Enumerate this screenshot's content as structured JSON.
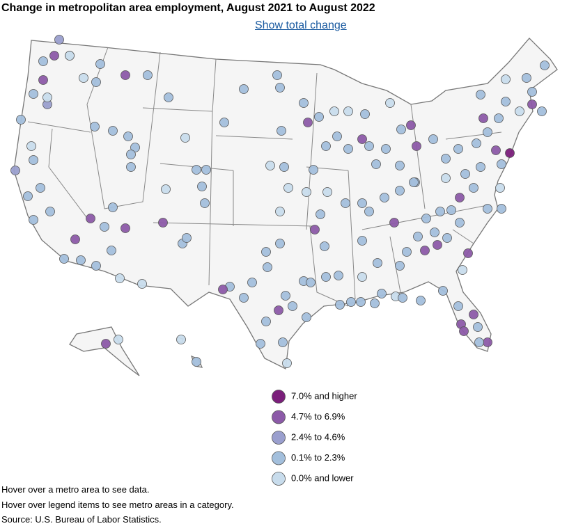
{
  "header": {
    "title": "Change in metropolitan area employment, August 2021 to August 2022",
    "link": "Show total change"
  },
  "legend": {
    "items": [
      {
        "label": "7.0% and higher",
        "color": "#7b1f7b"
      },
      {
        "label": "4.7% to 6.9%",
        "color": "#8c5aa8"
      },
      {
        "label": "2.4% to 4.6%",
        "color": "#9a9fce"
      },
      {
        "label": "0.1% to 2.3%",
        "color": "#a3bfdc"
      },
      {
        "label": "0.0% and lower",
        "color": "#c8dcec"
      }
    ]
  },
  "notes": [
    "Hover over a metro area to see data.",
    "Hover over legend items to see metro areas in a category.",
    "Source: U.S. Bureau of Labor Statistics."
  ]
}
